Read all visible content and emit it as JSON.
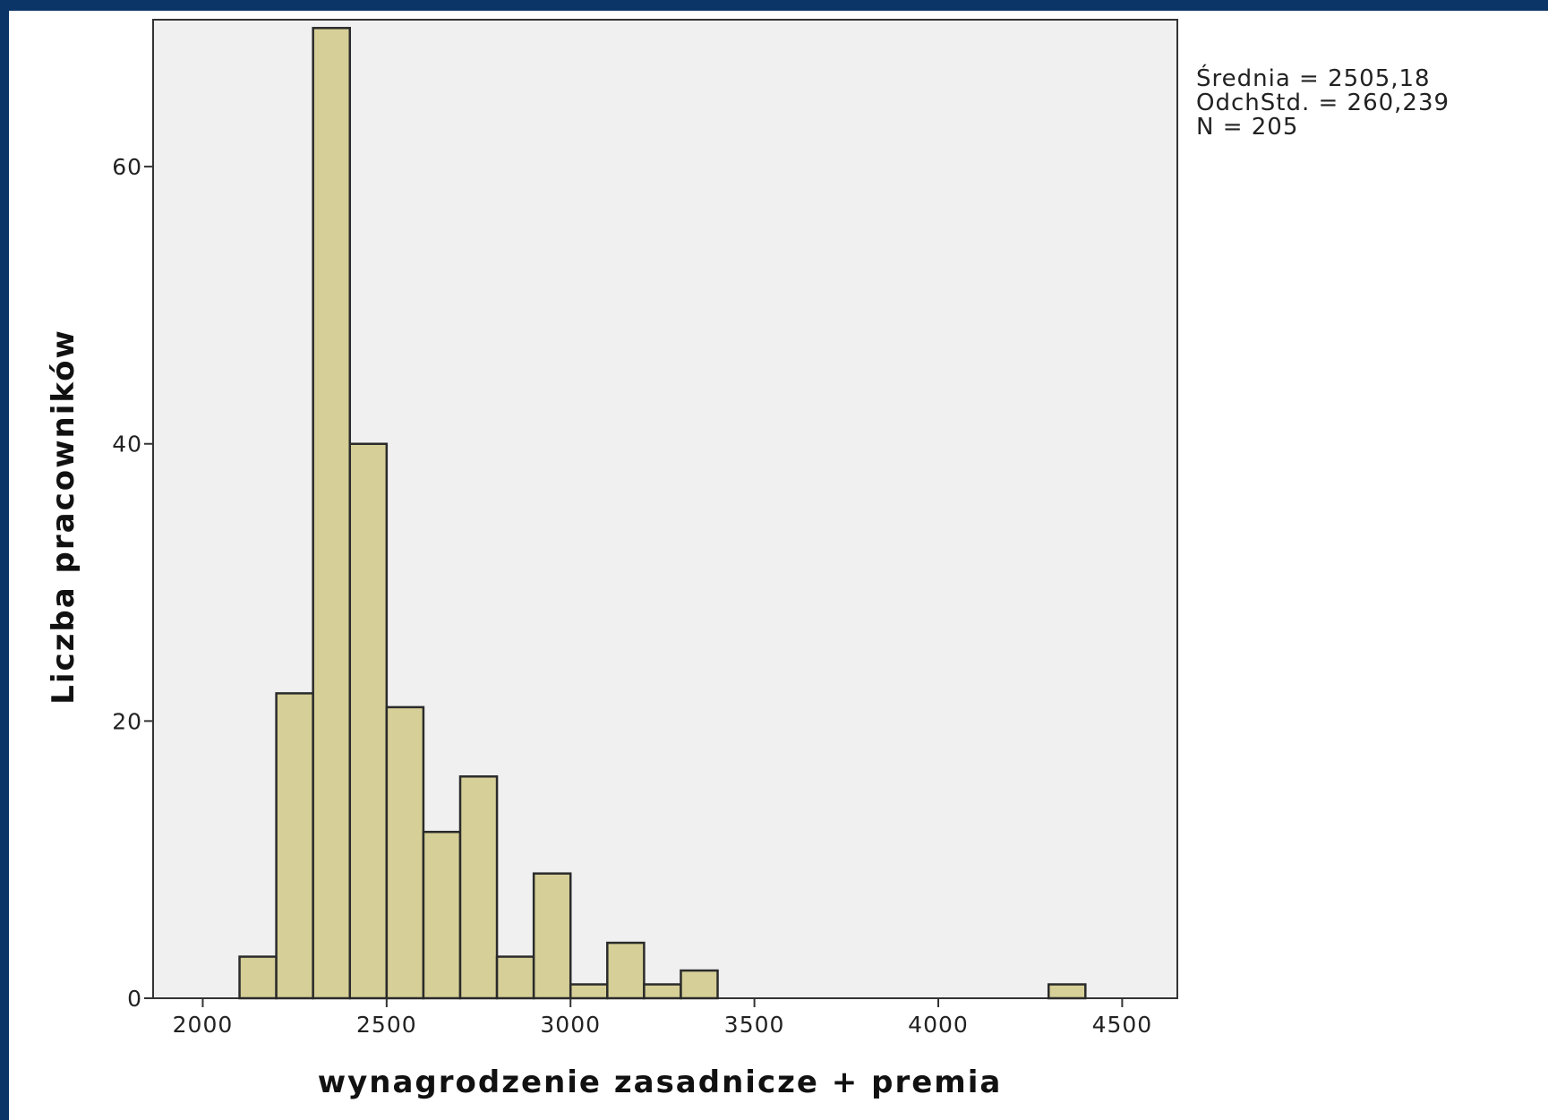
{
  "chart_data": {
    "type": "bar",
    "subtype": "histogram",
    "xlabel": "wynagrodzenie zasadnicze + premia",
    "ylabel": "Liczba pracowników",
    "xlim": [
      1865,
      4650
    ],
    "ylim": [
      0,
      70.6
    ],
    "x_ticks": [
      2000,
      2500,
      3000,
      3500,
      4000,
      4500
    ],
    "y_ticks": [
      0,
      20,
      40,
      60
    ],
    "bins": [
      {
        "start": 2100,
        "end": 2200,
        "count": 3
      },
      {
        "start": 2200,
        "end": 2300,
        "count": 22
      },
      {
        "start": 2300,
        "end": 2400,
        "count": 70
      },
      {
        "start": 2400,
        "end": 2500,
        "count": 40
      },
      {
        "start": 2500,
        "end": 2600,
        "count": 21
      },
      {
        "start": 2600,
        "end": 2700,
        "count": 12
      },
      {
        "start": 2700,
        "end": 2800,
        "count": 16
      },
      {
        "start": 2800,
        "end": 2900,
        "count": 3
      },
      {
        "start": 2900,
        "end": 3000,
        "count": 9
      },
      {
        "start": 3000,
        "end": 3100,
        "count": 1
      },
      {
        "start": 3100,
        "end": 3200,
        "count": 4
      },
      {
        "start": 3200,
        "end": 3300,
        "count": 1
      },
      {
        "start": 3300,
        "end": 3400,
        "count": 2
      },
      {
        "start": 4300,
        "end": 4400,
        "count": 1
      }
    ],
    "stats": [
      "Średnia = 2505,18",
      "OdchStd. = 260,239",
      "N = 205"
    ],
    "grid": false,
    "colors": {
      "bar_fill": "#d6cf97",
      "bar_stroke": "#2b2b2b",
      "plot_background": "#f0f0f0",
      "frame_border": "#0b3566"
    }
  }
}
